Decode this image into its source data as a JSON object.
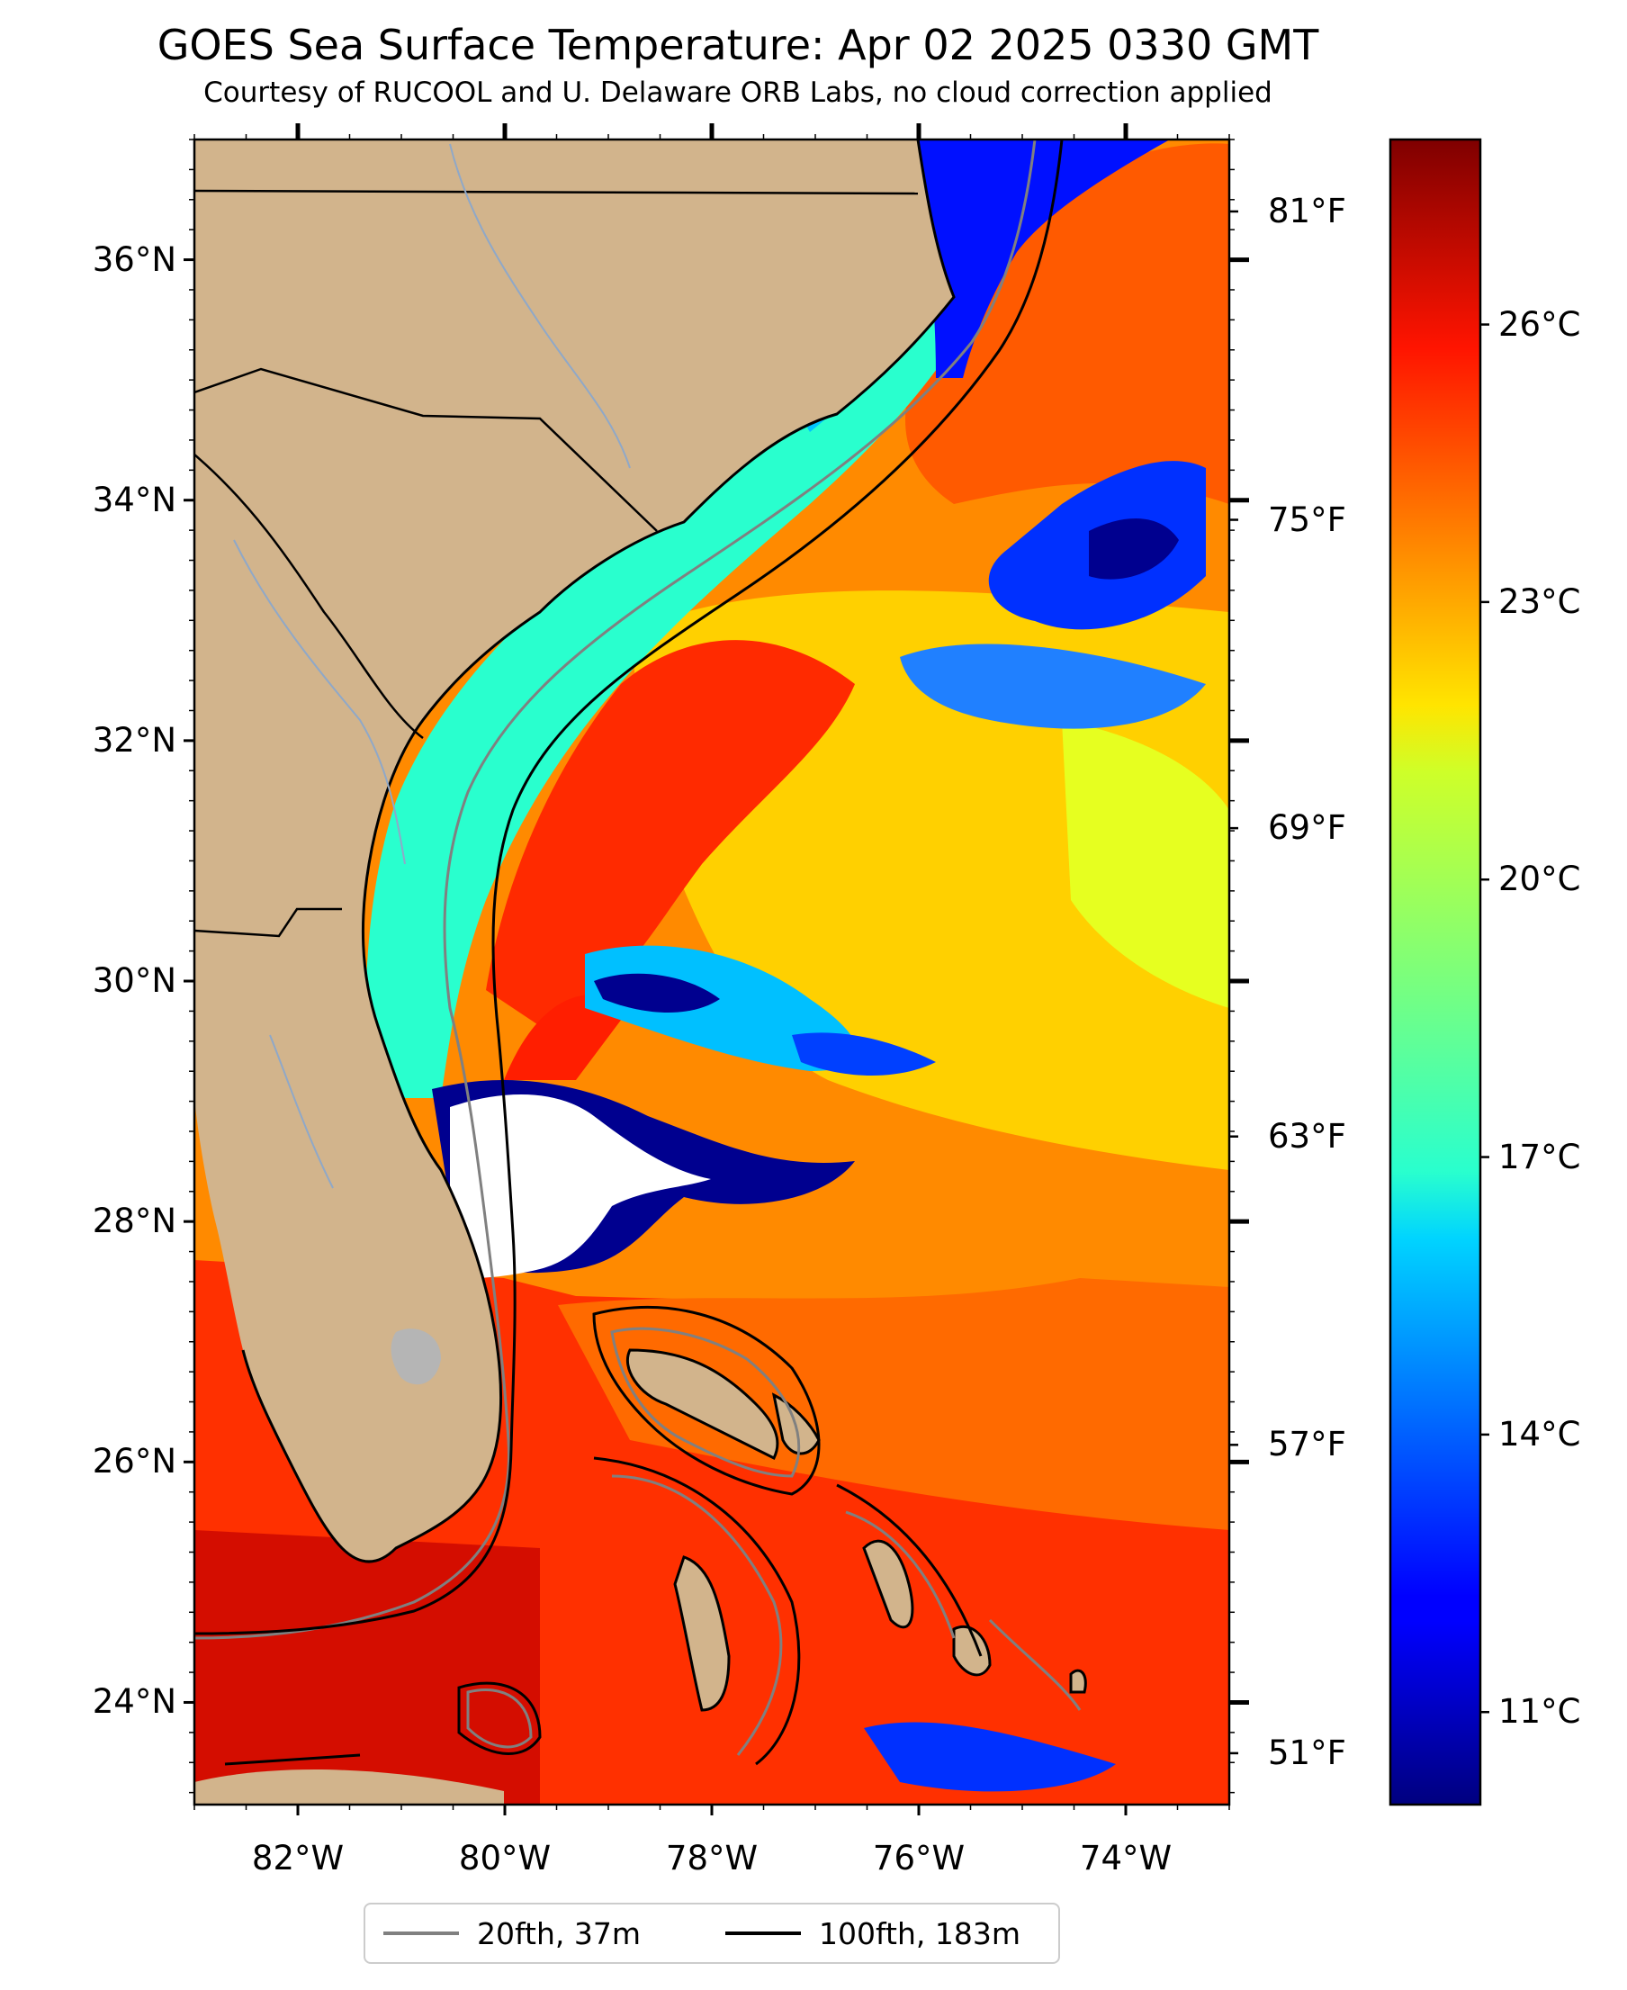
{
  "title": "GOES Sea Surface Temperature: Apr 02 2025 0330 GMT",
  "subtitle": "Courtesy of RUCOOL and U. Delaware ORB Labs, no cloud correction applied",
  "map": {
    "extent": {
      "lon_min": -83.0,
      "lon_max": -73.0,
      "lat_min": 23.15,
      "lat_max": 37.0
    },
    "land_color": "#d2b48c",
    "no_data_color": "#ffffff",
    "lake_color": "#b5b5b5",
    "lat_ticks": [
      {
        "value": 24,
        "label": "24°N"
      },
      {
        "value": 26,
        "label": "26°N"
      },
      {
        "value": 28,
        "label": "28°N"
      },
      {
        "value": 30,
        "label": "30°N"
      },
      {
        "value": 32,
        "label": "32°N"
      },
      {
        "value": 34,
        "label": "34°N"
      },
      {
        "value": 36,
        "label": "36°N"
      }
    ],
    "lon_ticks": [
      {
        "value": -82,
        "label": "82°W"
      },
      {
        "value": -80,
        "label": "80°W"
      },
      {
        "value": -78,
        "label": "78°W"
      },
      {
        "value": -76,
        "label": "76°W"
      },
      {
        "value": -74,
        "label": "74°W"
      }
    ]
  },
  "colorbar": {
    "colormap": "jet",
    "range_c": [
      10.0,
      28.0
    ],
    "celsius_ticks": [
      {
        "value": 11,
        "label": "11°C"
      },
      {
        "value": 14,
        "label": "14°C"
      },
      {
        "value": 17,
        "label": "17°C"
      },
      {
        "value": 20,
        "label": "20°C"
      },
      {
        "value": 23,
        "label": "23°C"
      },
      {
        "value": 26,
        "label": "26°C"
      }
    ],
    "fahrenheit_ticks": [
      {
        "value": 51,
        "label": "51°F"
      },
      {
        "value": 57,
        "label": "57°F"
      },
      {
        "value": 63,
        "label": "63°F"
      },
      {
        "value": 69,
        "label": "69°F"
      },
      {
        "value": 75,
        "label": "75°F"
      },
      {
        "value": 81,
        "label": "81°F"
      }
    ]
  },
  "legend": [
    {
      "label": "20fth, 37m",
      "color": "#808080"
    },
    {
      "label": "100fth, 183m",
      "color": "#000000"
    }
  ]
}
